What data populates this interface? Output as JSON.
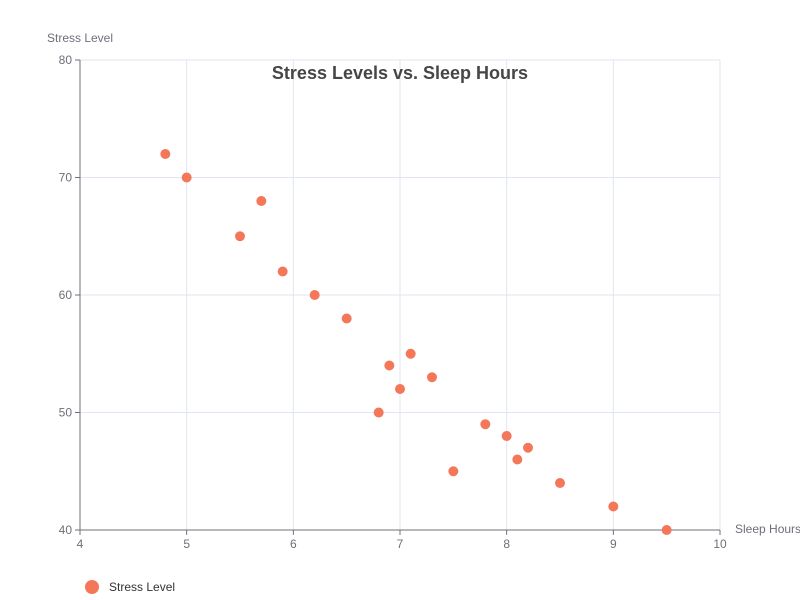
{
  "chart_data": {
    "type": "scatter",
    "title": "Stress Levels vs. Sleep Hours",
    "xlabel": "Sleep Hours",
    "ylabel": "Stress Level",
    "xlim": [
      4,
      10
    ],
    "ylim": [
      40,
      80
    ],
    "xticks": [
      4,
      5,
      6,
      7,
      8,
      9,
      10
    ],
    "yticks": [
      40,
      50,
      60,
      70,
      80
    ],
    "grid": true,
    "legend_position": "bottom-left",
    "series": [
      {
        "name": "Stress Level",
        "color": "#f4775a",
        "points": [
          {
            "x": 4.8,
            "y": 72
          },
          {
            "x": 5.0,
            "y": 70
          },
          {
            "x": 5.5,
            "y": 65
          },
          {
            "x": 5.7,
            "y": 68
          },
          {
            "x": 5.9,
            "y": 62
          },
          {
            "x": 6.2,
            "y": 60
          },
          {
            "x": 6.5,
            "y": 58
          },
          {
            "x": 6.8,
            "y": 50
          },
          {
            "x": 6.9,
            "y": 54
          },
          {
            "x": 7.0,
            "y": 52
          },
          {
            "x": 7.1,
            "y": 55
          },
          {
            "x": 7.3,
            "y": 53
          },
          {
            "x": 7.5,
            "y": 45
          },
          {
            "x": 7.8,
            "y": 49
          },
          {
            "x": 8.0,
            "y": 48
          },
          {
            "x": 8.1,
            "y": 46
          },
          {
            "x": 8.2,
            "y": 47
          },
          {
            "x": 8.5,
            "y": 44
          },
          {
            "x": 9.0,
            "y": 42
          },
          {
            "x": 9.5,
            "y": 40
          }
        ]
      }
    ]
  }
}
